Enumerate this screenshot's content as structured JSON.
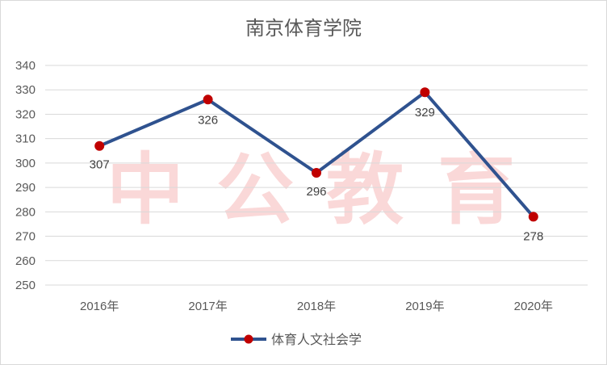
{
  "watermark": {
    "chars": [
      "中",
      "公",
      "教",
      "育"
    ],
    "color": "#f7b9b9"
  },
  "chart_data": {
    "type": "line",
    "title": "南京体育学院",
    "xlabel": "",
    "ylabel": "",
    "categories": [
      "2016年",
      "2017年",
      "2018年",
      "2019年",
      "2020年"
    ],
    "series": [
      {
        "name": "体育人文社会学",
        "values": [
          307,
          326,
          296,
          329,
          278
        ],
        "line_color": "#2f528f",
        "marker_color": "#c00000"
      }
    ],
    "ylim": [
      250,
      340
    ],
    "yticks": [
      250,
      260,
      270,
      280,
      290,
      300,
      310,
      320,
      330,
      340
    ],
    "grid": true,
    "legend_position": "bottom",
    "data_labels": true
  }
}
